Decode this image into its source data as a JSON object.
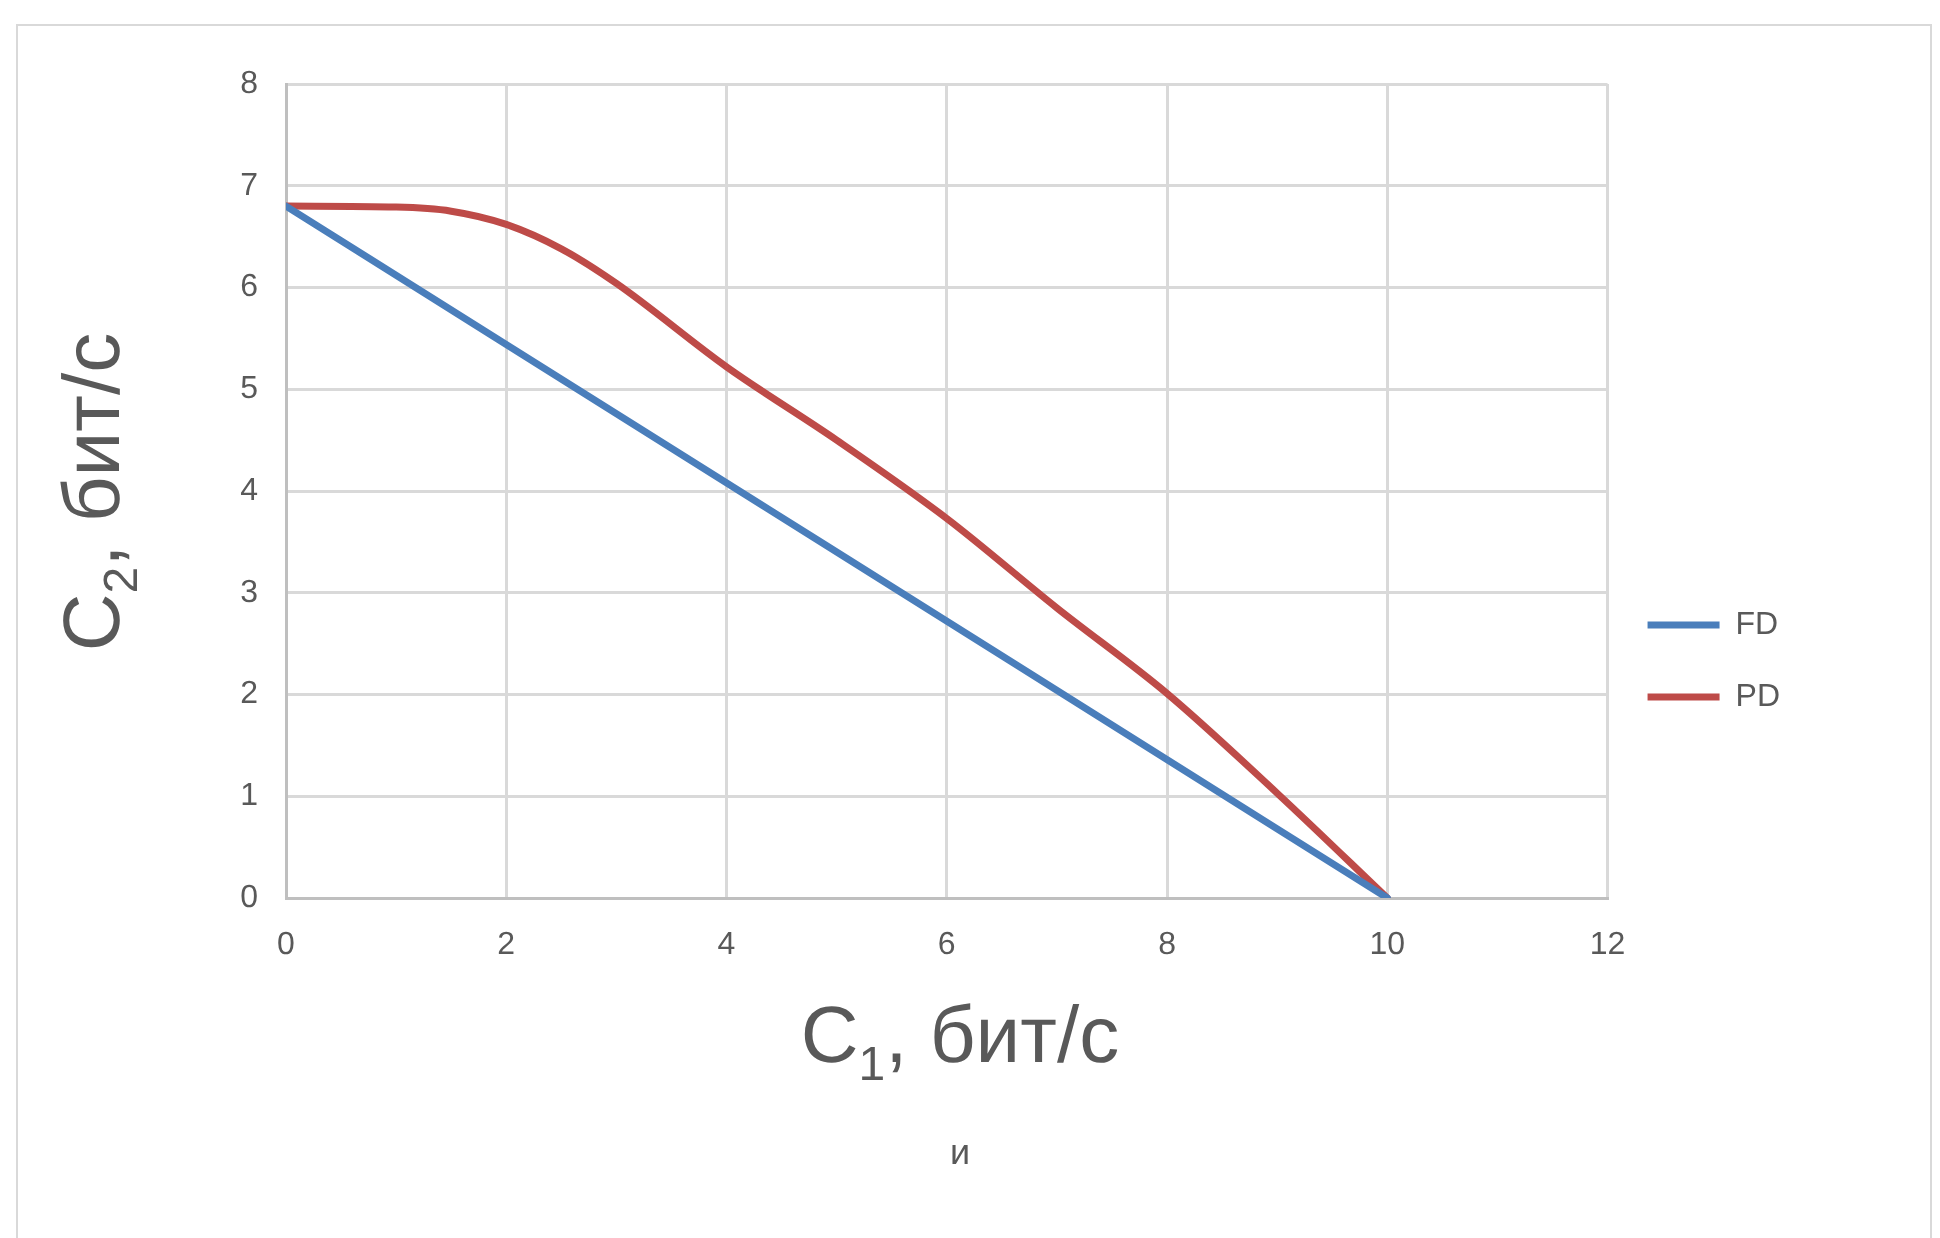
{
  "chart_data": {
    "type": "line",
    "xlabel": "C$_{1}$, бит/с",
    "ylabel": "C$_{2}$, бит/с",
    "annotations": [
      "и"
    ],
    "xlim": [
      0,
      12
    ],
    "xticks": [
      0,
      2,
      4,
      6,
      8,
      10,
      12
    ],
    "ylim": [
      0,
      8
    ],
    "yticks": [
      0,
      1,
      2,
      3,
      4,
      5,
      6,
      7,
      8
    ],
    "grid": true,
    "legend": "right",
    "marker": "none",
    "line_style": "solid",
    "series": [
      {
        "name": "FD",
        "color": "#4a7ebb",
        "x": [
          0,
          10
        ],
        "values": [
          6.8,
          0
        ]
      },
      {
        "name": "PD",
        "color": "#be4b48",
        "x": [
          0,
          1,
          1.5,
          2,
          2.5,
          3,
          4,
          5,
          6,
          7,
          8,
          9,
          10
        ],
        "values": [
          6.8,
          6.79,
          6.75,
          6.62,
          6.38,
          6.04,
          5.22,
          4.5,
          3.73,
          2.85,
          2.01,
          1.03,
          0
        ]
      }
    ]
  }
}
